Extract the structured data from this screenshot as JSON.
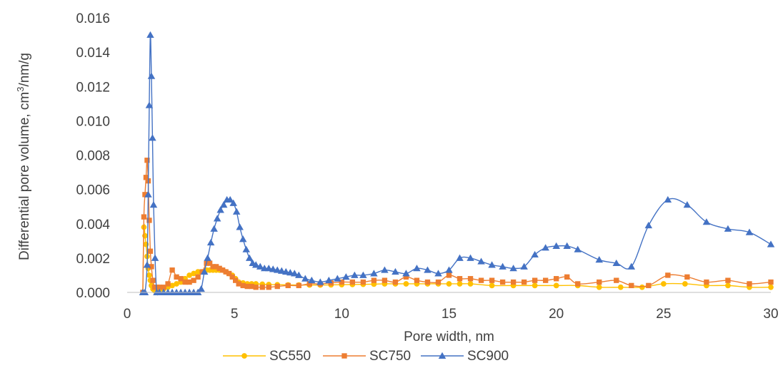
{
  "chart_data": {
    "type": "line",
    "title": "",
    "xlabel": "Pore width, nm",
    "ylabel_parts": [
      "Differential pore volume, cm",
      "3",
      "/nm/g"
    ],
    "xlim": [
      0,
      30
    ],
    "ylim": [
      0,
      0.016
    ],
    "x_ticks": [
      "0",
      "5",
      "10",
      "15",
      "20",
      "25",
      "30"
    ],
    "y_ticks": [
      "0.000",
      "0.002",
      "0.004",
      "0.006",
      "0.008",
      "0.010",
      "0.012",
      "0.014",
      "0.016"
    ],
    "x_tick_values": [
      0,
      5,
      10,
      15,
      20,
      25,
      30
    ],
    "y_tick_values": [
      0,
      0.002,
      0.004,
      0.006,
      0.008,
      0.01,
      0.012,
      0.014,
      0.016
    ],
    "grid": false,
    "legend_position": "bottom",
    "series": [
      {
        "name": "SC550",
        "color": "#FFC000",
        "marker": "circle",
        "x": [
          0.73,
          0.78,
          0.83,
          0.88,
          0.93,
          0.98,
          1.03,
          1.08,
          1.13,
          1.2,
          1.28,
          1.38,
          1.5,
          1.7,
          1.9,
          2.1,
          2.3,
          2.5,
          2.7,
          2.9,
          3.1,
          3.3,
          3.5,
          3.7,
          3.85,
          4.0,
          4.15,
          4.3,
          4.45,
          4.6,
          4.75,
          4.9,
          5.05,
          5.2,
          5.4,
          5.6,
          5.8,
          6.0,
          6.3,
          6.6,
          7.0,
          7.5,
          8.0,
          8.5,
          9.0,
          9.5,
          10.0,
          10.5,
          11.0,
          11.5,
          12.0,
          12.5,
          13.0,
          13.5,
          14.0,
          14.5,
          15.0,
          15.5,
          16.0,
          17.0,
          18.0,
          19.0,
          20.0,
          21.0,
          22.0,
          23.0,
          24.0,
          25.0,
          26.0,
          27.0,
          28.0,
          29.0,
          30.0
        ],
        "y": [
          0.0,
          0.0038,
          0.0033,
          0.0028,
          0.0021,
          0.0014,
          0.001,
          0.0007,
          0.0004,
          0.0002,
          0.0001,
          0.0001,
          0.0001,
          0.0002,
          0.0003,
          0.0004,
          0.0005,
          0.0006,
          0.0008,
          0.001,
          0.0011,
          0.0012,
          0.0012,
          0.0013,
          0.0013,
          0.0013,
          0.0013,
          0.0013,
          0.0013,
          0.0012,
          0.0011,
          0.001,
          0.0008,
          0.0006,
          0.00055,
          0.0005,
          0.0005,
          0.0005,
          0.00048,
          0.00046,
          0.00045,
          0.00044,
          0.00043,
          0.00043,
          0.00043,
          0.00044,
          0.00045,
          0.00046,
          0.00047,
          0.00048,
          0.0005,
          0.0005,
          0.0005,
          0.0005,
          0.0005,
          0.0005,
          0.0005,
          0.0005,
          0.0005,
          0.0004,
          0.0004,
          0.0004,
          0.0004,
          0.0004,
          0.0003,
          0.0003,
          0.0003,
          0.0005,
          0.0005,
          0.0004,
          0.0004,
          0.0003,
          0.0003
        ]
      },
      {
        "name": "SC750",
        "color": "#ED7D31",
        "marker": "square",
        "x": [
          0.73,
          0.78,
          0.83,
          0.88,
          0.93,
          0.98,
          1.03,
          1.08,
          1.13,
          1.2,
          1.28,
          1.38,
          1.5,
          1.7,
          1.9,
          2.1,
          2.3,
          2.5,
          2.7,
          2.9,
          3.1,
          3.3,
          3.5,
          3.7,
          3.85,
          4.0,
          4.15,
          4.3,
          4.45,
          4.6,
          4.75,
          4.9,
          5.05,
          5.2,
          5.4,
          5.6,
          5.8,
          6.0,
          6.3,
          6.6,
          7.0,
          7.5,
          8.0,
          8.5,
          9.0,
          9.5,
          10.0,
          10.5,
          11.0,
          11.5,
          12.0,
          12.5,
          13.0,
          13.5,
          14.0,
          14.5,
          15.0,
          15.5,
          16.0,
          16.5,
          17.0,
          17.5,
          18.0,
          18.5,
          19.0,
          19.5,
          20.0,
          20.5,
          21.0,
          22.0,
          22.8,
          23.5,
          24.3,
          25.2,
          26.1,
          27.0,
          28.0,
          29.0,
          30.0
        ],
        "y": [
          0.0,
          0.0044,
          0.0057,
          0.0067,
          0.0077,
          0.0065,
          0.0042,
          0.0024,
          0.0015,
          0.0007,
          0.0003,
          0.0003,
          0.0003,
          0.0003,
          0.0005,
          0.0013,
          0.0009,
          0.0008,
          0.0006,
          0.0006,
          0.0007,
          0.0009,
          0.0012,
          0.0017,
          0.0017,
          0.0015,
          0.0015,
          0.0014,
          0.0013,
          0.0012,
          0.0011,
          0.0009,
          0.0007,
          0.0005,
          0.0004,
          0.00035,
          0.00035,
          0.0003,
          0.0003,
          0.0003,
          0.00035,
          0.0004,
          0.0004,
          0.0005,
          0.0005,
          0.00055,
          0.0006,
          0.0006,
          0.0006,
          0.0007,
          0.0007,
          0.0006,
          0.0009,
          0.0007,
          0.0006,
          0.0006,
          0.001,
          0.0008,
          0.0008,
          0.0007,
          0.0007,
          0.0006,
          0.0006,
          0.0006,
          0.0007,
          0.0007,
          0.0008,
          0.0009,
          0.0005,
          0.0006,
          0.0007,
          0.0004,
          0.0004,
          0.001,
          0.0009,
          0.0006,
          0.0007,
          0.0005,
          0.0006
        ]
      },
      {
        "name": "SC900",
        "color": "#4472C4",
        "marker": "triangle",
        "x": [
          0.73,
          0.83,
          0.93,
          0.98,
          1.03,
          1.08,
          1.13,
          1.18,
          1.23,
          1.3,
          1.38,
          1.5,
          1.7,
          1.9,
          2.1,
          2.3,
          2.5,
          2.7,
          2.9,
          3.1,
          3.3,
          3.45,
          3.6,
          3.75,
          3.9,
          4.05,
          4.2,
          4.35,
          4.5,
          4.65,
          4.8,
          4.95,
          5.1,
          5.25,
          5.4,
          5.55,
          5.7,
          5.85,
          6.0,
          6.2,
          6.4,
          6.6,
          6.8,
          7.0,
          7.2,
          7.4,
          7.6,
          7.8,
          8.0,
          8.3,
          8.6,
          9.0,
          9.4,
          9.8,
          10.2,
          10.6,
          11.0,
          11.5,
          12.0,
          12.5,
          13.0,
          13.5,
          14.0,
          14.5,
          15.0,
          15.5,
          16.0,
          16.5,
          17.0,
          17.5,
          18.0,
          18.5,
          19.0,
          19.5,
          20.0,
          20.5,
          21.0,
          22.0,
          22.8,
          23.5,
          24.3,
          25.2,
          26.1,
          27.0,
          28.0,
          29.0,
          30.0
        ],
        "y": [
          0.0,
          0.0,
          0.0016,
          0.0057,
          0.0109,
          0.015,
          0.0126,
          0.009,
          0.0051,
          0.002,
          0.0,
          0.0,
          0.0,
          0.0,
          0.0,
          0.0,
          0.0,
          0.0,
          0.0,
          0.0,
          0.0,
          0.0002,
          0.0012,
          0.002,
          0.0029,
          0.0037,
          0.0043,
          0.0048,
          0.0051,
          0.0054,
          0.0054,
          0.0052,
          0.0047,
          0.0038,
          0.0031,
          0.0025,
          0.002,
          0.0017,
          0.0016,
          0.0015,
          0.0014,
          0.0014,
          0.00135,
          0.0013,
          0.00125,
          0.0012,
          0.00115,
          0.0011,
          0.001,
          0.0008,
          0.0007,
          0.0006,
          0.0007,
          0.0008,
          0.0009,
          0.001,
          0.001,
          0.0011,
          0.0013,
          0.0012,
          0.0011,
          0.0014,
          0.0013,
          0.0011,
          0.0013,
          0.002,
          0.002,
          0.0018,
          0.0016,
          0.0015,
          0.0014,
          0.0015,
          0.0022,
          0.0026,
          0.0027,
          0.0027,
          0.0025,
          0.0019,
          0.0017,
          0.0015,
          0.0039,
          0.0054,
          0.0051,
          0.0041,
          0.0037,
          0.0035,
          0.0028
        ]
      }
    ]
  }
}
